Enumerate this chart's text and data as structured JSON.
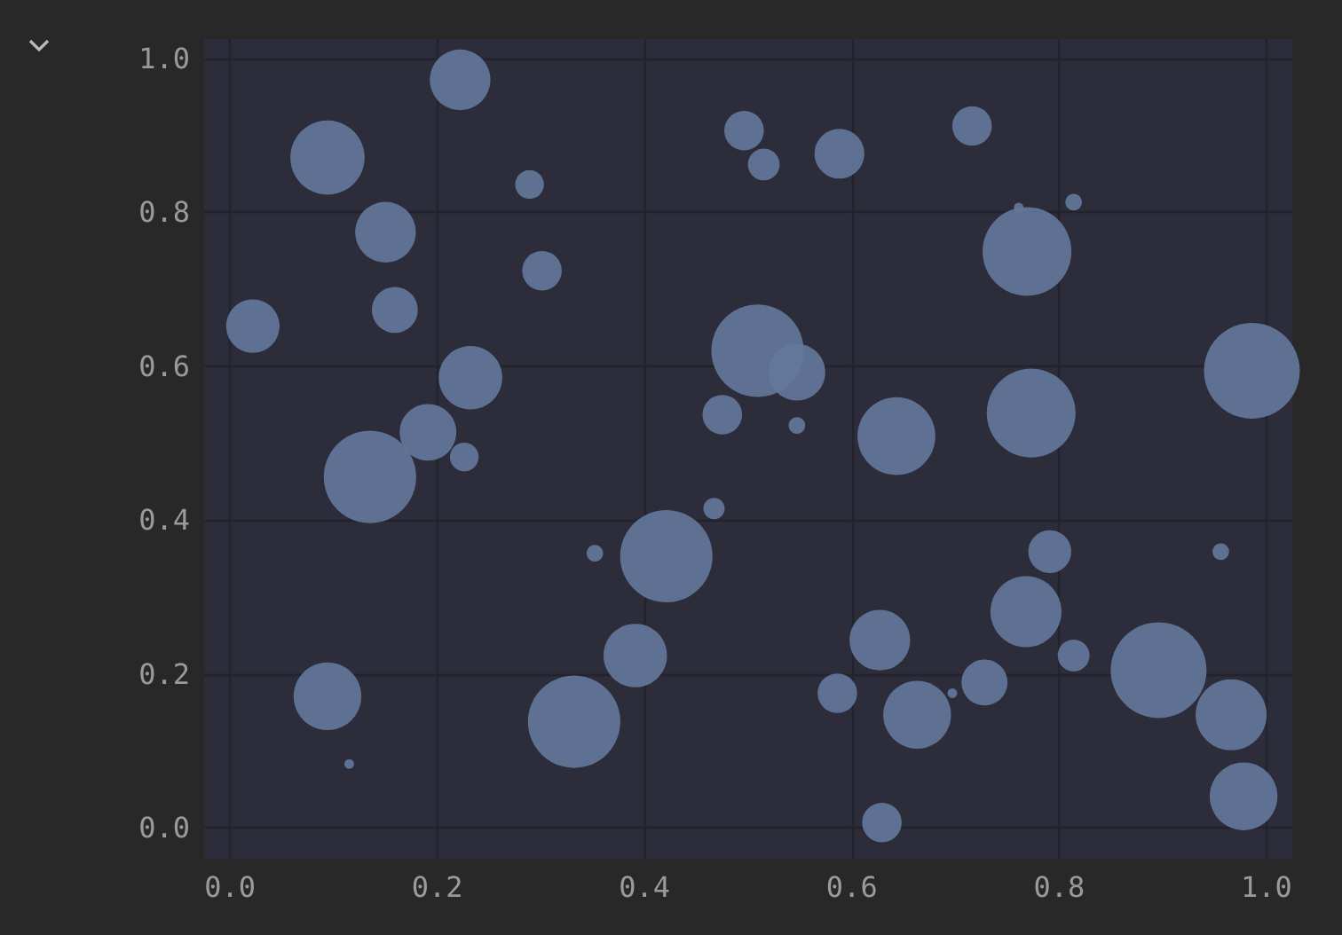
{
  "chart_data": {
    "type": "bubble",
    "color": "#64779a",
    "grid": true,
    "marker": "circle",
    "x": [
      0.022,
      0.094,
      0.222,
      0.15,
      0.159,
      0.289,
      0.301,
      0.232,
      0.191,
      0.135,
      0.226,
      0.094,
      0.115,
      0.332,
      0.391,
      0.421,
      0.352,
      0.467,
      0.475,
      0.509,
      0.547,
      0.547,
      0.496,
      0.515,
      0.588,
      0.716,
      0.761,
      0.814,
      0.769,
      0.643,
      0.773,
      0.986,
      0.791,
      0.768,
      0.814,
      0.627,
      0.586,
      0.663,
      0.697,
      0.728,
      0.629,
      0.896,
      0.956,
      0.966,
      0.978
    ],
    "values": [
      0.652,
      0.871,
      0.972,
      0.774,
      0.673,
      0.836,
      0.724,
      0.585,
      0.514,
      0.456,
      0.482,
      0.171,
      0.083,
      0.138,
      0.224,
      0.353,
      0.357,
      0.415,
      0.537,
      0.62,
      0.592,
      0.523,
      0.906,
      0.862,
      0.876,
      0.912,
      0.806,
      0.813,
      0.749,
      0.509,
      0.539,
      0.594,
      0.359,
      0.281,
      0.224,
      0.244,
      0.175,
      0.147,
      0.175,
      0.189,
      0.007,
      0.205,
      0.359,
      0.147,
      0.041
    ],
    "sizes": [
      0.31,
      0.6,
      0.4,
      0.4,
      0.23,
      0.09,
      0.17,
      0.44,
      0.35,
      0.93,
      0.09,
      0.5,
      0.01,
      0.93,
      0.44,
      0.93,
      0.03,
      0.05,
      0.17,
      0.93,
      0.35,
      0.03,
      0.17,
      0.11,
      0.27,
      0.17,
      0.01,
      0.03,
      0.86,
      0.66,
      0.86,
      1,
      0.2,
      0.55,
      0.11,
      0.4,
      0.17,
      0.5,
      0.01,
      0.23,
      0.17,
      1,
      0.03,
      0.55,
      0.5
    ],
    "xlim": [
      -0.025,
      1.025
    ],
    "ylim": [
      -0.04,
      1.025
    ],
    "xticks": [
      {
        "value": 0,
        "label": "0.0"
      },
      0.2,
      0.4,
      0.6,
      0.8,
      {
        "value": 1,
        "label": "1.0"
      }
    ],
    "yticks": [
      {
        "value": 0,
        "label": "0.0"
      },
      0.2,
      0.4,
      0.6,
      0.8,
      {
        "value": 1,
        "label": "1.0"
      }
    ]
  }
}
